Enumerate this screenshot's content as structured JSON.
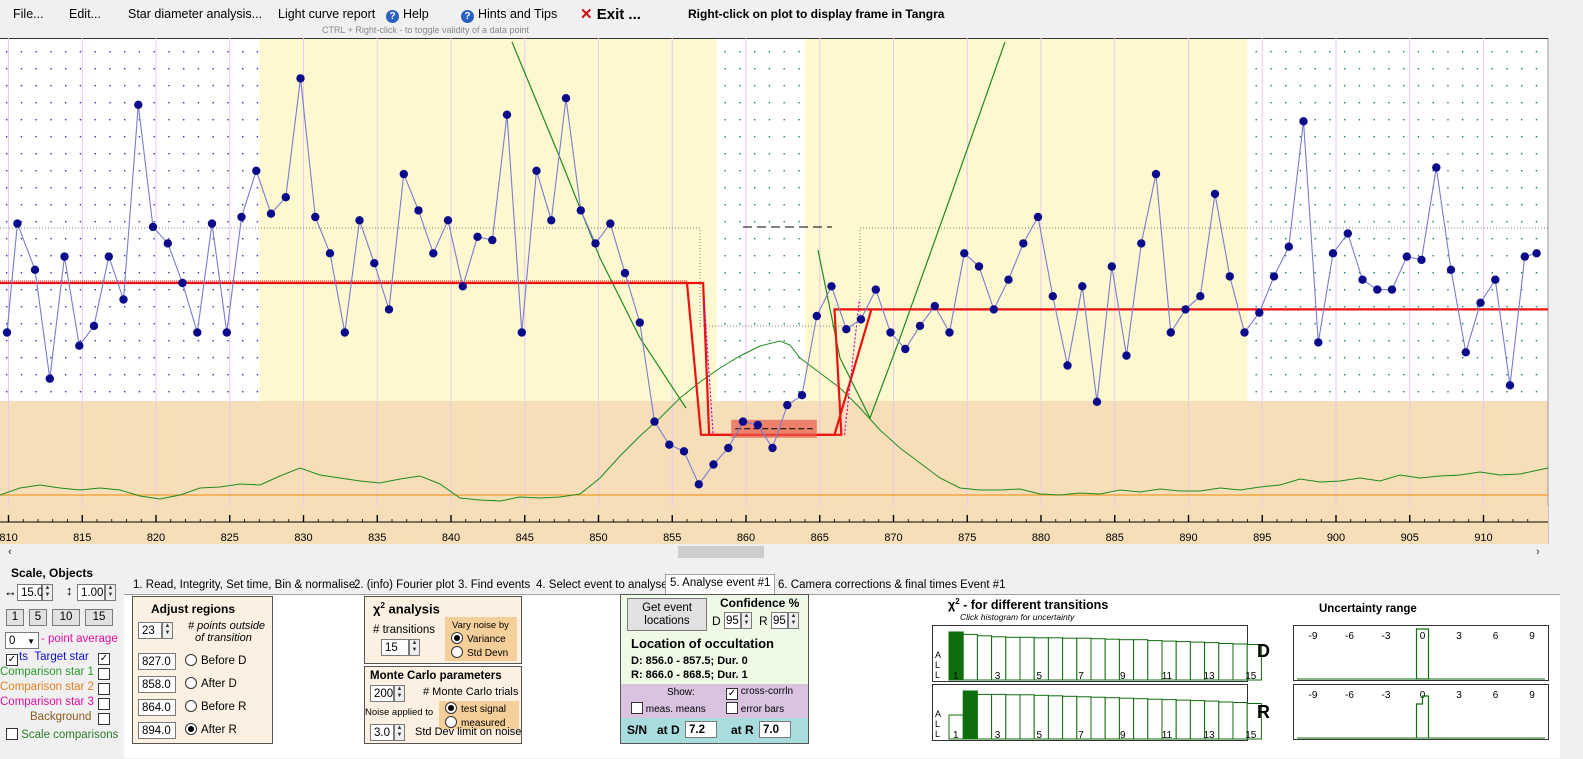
{
  "menu": {
    "file": "File...",
    "edit": "Edit...",
    "star_diameter": "Star diameter analysis...",
    "light_curve": "Light curve report",
    "help": "Help",
    "hints": "Hints and Tips",
    "exit": "Exit ...",
    "right_click_hint": "Right-click on plot to display frame in Tangra",
    "ctrl_hint": "CTRL + Right-click  -  to toggle validity of a data point"
  },
  "colors": {
    "plot_yellow": "#fef8d0",
    "plot_tan": "#f6dfb8",
    "data_line": "#7a7ad2",
    "data_dot": "#0a0a8a",
    "model_red": "#ee1111",
    "green_curve": "#1f8a1f",
    "orange_line": "#ef9b2a",
    "target_blue": "#1010cc",
    "comparison1": "#2a9a2a",
    "comparison2": "#e08020",
    "comparison3": "#e010a0",
    "background": "#8a5a20"
  },
  "chart_data": {
    "type": "line",
    "x_tick_labels": [
      "810",
      "815",
      "820",
      "825",
      "830",
      "835",
      "840",
      "845",
      "850",
      "855",
      "860",
      "865",
      "870",
      "875",
      "880",
      "885",
      "890",
      "895",
      "900",
      "905",
      "910"
    ],
    "xlim": [
      809.7,
      913.7
    ],
    "series": [
      {
        "x": [
          809.9,
          810.6,
          811.8,
          812.8,
          813.8,
          814.8,
          815.8,
          816.8,
          817.8,
          818.8,
          819.8,
          820.8,
          821.8,
          822.8,
          823.8,
          824.8,
          825.8,
          826.8,
          827.8,
          828.8,
          829.8,
          830.8,
          831.8,
          832.8,
          833.8,
          834.8,
          835.8,
          836.8,
          837.8,
          838.8,
          839.8,
          840.8,
          841.8,
          842.8,
          843.8,
          844.8,
          845.8,
          846.8,
          847.8,
          848.8,
          849.8,
          850.8,
          851.8,
          852.8,
          853.8,
          854.8,
          855.8,
          856.8,
          857.8,
          858.8,
          859.8,
          860.8,
          861.8,
          862.8,
          863.8,
          864.8,
          865.8,
          866.8,
          867.8,
          868.8,
          869.8,
          870.8,
          871.8,
          872.8,
          873.8,
          874.8,
          875.8,
          876.8,
          877.8,
          878.8,
          879.8,
          880.8,
          881.8,
          882.8,
          883.8,
          884.8,
          885.8,
          886.8,
          887.8,
          888.8,
          889.8,
          890.8,
          891.8,
          892.8,
          893.8,
          894.8,
          895.8,
          896.8,
          897.8,
          898.8,
          899.8,
          900.8,
          901.8,
          902.8,
          903.8,
          904.8,
          905.8,
          906.8,
          907.8,
          908.8,
          909.8,
          910.8,
          911.8,
          912.8,
          913.6
        ],
        "y": [
          0.45,
          0.78,
          0.64,
          0.31,
          0.68,
          0.41,
          0.47,
          0.68,
          0.55,
          1.14,
          0.77,
          0.72,
          0.6,
          0.45,
          0.78,
          0.45,
          0.8,
          0.94,
          0.81,
          0.86,
          1.22,
          0.8,
          0.69,
          0.45,
          0.79,
          0.66,
          0.52,
          0.93,
          0.82,
          0.69,
          0.79,
          0.59,
          0.74,
          0.73,
          1.11,
          0.45,
          0.94,
          0.79,
          1.16,
          0.82,
          0.72,
          0.78,
          0.63,
          0.48,
          0.18,
          0.11,
          0.09,
          -0.01,
          0.05,
          0.1,
          0.18,
          0.17,
          0.1,
          0.23,
          0.26,
          0.5,
          0.59,
          0.46,
          0.49,
          0.58,
          0.45,
          0.4,
          0.47,
          0.53,
          0.45,
          0.69,
          0.65,
          0.52,
          0.61,
          0.72,
          0.8,
          0.56,
          0.35,
          0.59,
          0.24,
          0.65,
          0.38,
          0.72,
          0.93,
          0.45,
          0.52,
          0.56,
          0.87,
          0.62,
          0.45,
          0.51,
          0.62,
          0.71,
          1.09,
          0.42,
          0.69,
          0.75,
          0.61,
          0.58,
          0.58,
          0.68,
          0.67,
          0.95,
          0.64,
          0.39,
          0.54,
          0.61,
          0.29,
          0.68,
          0.69
        ],
        "name": ""
      }
    ],
    "model": {
      "D": [
        856.0,
        857.5
      ],
      "R": [
        866.0,
        868.5
      ],
      "baseline": 0.6,
      "bottom": 0.14
    }
  },
  "regions": {
    "before_d": 827.0,
    "after_d": 858.0,
    "before_r": 864.0,
    "after_r": 894.0
  },
  "left_panel": {
    "scale_objects": "Scale,  Objects",
    "scale_h": "15.0",
    "scale_v": "1.00",
    "zoom_buttons": [
      "1",
      "5",
      "10",
      "15"
    ],
    "avg_value": "0",
    "avg_label": "- point average",
    "objects": [
      {
        "label": "Target star",
        "prefix": "ts",
        "checked": true,
        "color": "#1010cc"
      },
      {
        "label": "Comparison star 1",
        "checked": false,
        "color": "#2a9a2a"
      },
      {
        "label": "Comparison star 2",
        "checked": false,
        "color": "#e08020"
      },
      {
        "label": "Comparison star 3",
        "checked": false,
        "color": "#e010a0"
      },
      {
        "label": "Background",
        "checked": false,
        "color": "#8a5a20"
      }
    ],
    "scale_comparisons": "Scale comparisons"
  },
  "tabs": [
    "1.  Read, Integrity, Set time, Bin & normalise",
    "2. (info)  Fourier plot",
    "3. Find events",
    "4. Select event to analyse",
    "5. Analyse event #1",
    "6. Camera corrections & final times Event #1"
  ],
  "adjust": {
    "title": "Adjust regions",
    "points": "23",
    "points_label": "# points outside",
    "points_label2": "of transition",
    "rows": [
      {
        "value": "827.0",
        "label": "Before D",
        "on": false
      },
      {
        "value": "858.0",
        "label": "After D",
        "on": false
      },
      {
        "value": "864.0",
        "label": "Before R",
        "on": false
      },
      {
        "value": "894.0",
        "label": "After R",
        "on": true
      }
    ]
  },
  "chi": {
    "title": "χ",
    "title_rest": " analysis",
    "transitions_label": "# transitions",
    "transitions": "15",
    "vary_label": "Vary noise by",
    "variance": "Variance",
    "std_devn": "Std Devn"
  },
  "monte": {
    "title": "Monte Carlo parameters",
    "trials": "200",
    "trials_label": "# Monte Carlo trials",
    "noise_applied": "Noise applied to",
    "test_signal": "test signal",
    "measured": "measured",
    "std_limit": "3.0",
    "std_limit_label": "Std Dev limit on noise"
  },
  "location": {
    "get_events": "Get event locations",
    "confidence": "Confidence %",
    "d_label": "D",
    "d_conf": "95",
    "r_label": "R",
    "r_conf": "95",
    "title": "Location of occultation",
    "d_line": "D: 856.0 - 857.5; Dur. 0",
    "r_line": "R: 866.0 - 868.5; Dur. 1",
    "show": "Show:",
    "meas_means": "meas. means",
    "cross_corrln": "cross-corrln",
    "error_bars": "error bars",
    "sn": "S/N",
    "at_d": "at D",
    "at_d_val": "7.2",
    "at_r": "at R",
    "at_r_val": "7.0"
  },
  "histo": {
    "title": "χ",
    "title_rest": " - for different transitions",
    "subtitle": "Click histogram for uncertainty",
    "all": [
      "A",
      "L",
      "L"
    ],
    "labels": [
      "1",
      "3",
      "5",
      "7",
      "9",
      "11",
      "13",
      "15"
    ],
    "d_label": "D",
    "r_label": "R",
    "d_values": [
      1.0,
      0.95,
      0.92,
      0.9,
      0.89,
      0.89,
      0.88,
      0.88,
      0.87,
      0.87,
      0.86,
      0.85,
      0.84,
      0.84,
      0.82,
      0.81,
      0.8,
      0.79,
      0.78,
      0.76,
      0.75,
      0.74
    ],
    "r_values": [
      0.5,
      1.0,
      0.93,
      0.93,
      0.92,
      0.92,
      0.91,
      0.9,
      0.89,
      0.88,
      0.87,
      0.86,
      0.85,
      0.84,
      0.83,
      0.82,
      0.81,
      0.8,
      0.79,
      0.77,
      0.76,
      0.74
    ],
    "d_selected": 1,
    "r_selected": 2
  },
  "uncert": {
    "title": "Uncertainty range",
    "labels": [
      "-9",
      "-6",
      "-3",
      "0",
      "3",
      "6",
      "9"
    ]
  }
}
